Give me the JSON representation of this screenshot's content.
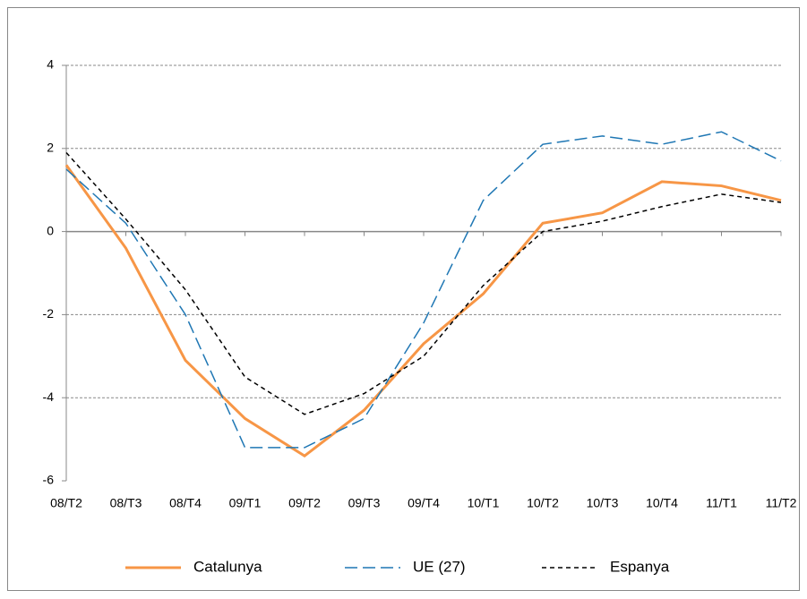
{
  "chart_data": {
    "type": "line",
    "categories": [
      "08/T2",
      "08/T3",
      "08/T4",
      "09/T1",
      "09/T2",
      "09/T3",
      "09/T4",
      "10/T1",
      "10/T2",
      "10/T3",
      "10/T4",
      "11/T1",
      "11/T2"
    ],
    "series": [
      {
        "name": "Catalunya",
        "color": "#f79646",
        "values": [
          1.6,
          -0.4,
          -3.1,
          -4.5,
          -5.4,
          -4.3,
          -2.7,
          -1.5,
          0.2,
          0.45,
          1.2,
          1.1,
          0.75
        ]
      },
      {
        "name": "UE (27)",
        "color": "#1f77b4",
        "values": [
          1.5,
          0.2,
          -2.0,
          -5.2,
          -5.2,
          -4.5,
          -2.2,
          0.75,
          2.1,
          2.3,
          2.1,
          2.4,
          1.7
        ]
      },
      {
        "name": "Espanya",
        "color": "#000000",
        "values": [
          1.9,
          0.3,
          -1.4,
          -3.5,
          -4.4,
          -3.9,
          -3.0,
          -1.3,
          0,
          0.25,
          0.6,
          0.9,
          0.7
        ]
      }
    ],
    "ylim": [
      -6,
      4
    ],
    "yticks": [
      -6,
      -4,
      -2,
      0,
      2,
      4
    ],
    "grid": true
  }
}
